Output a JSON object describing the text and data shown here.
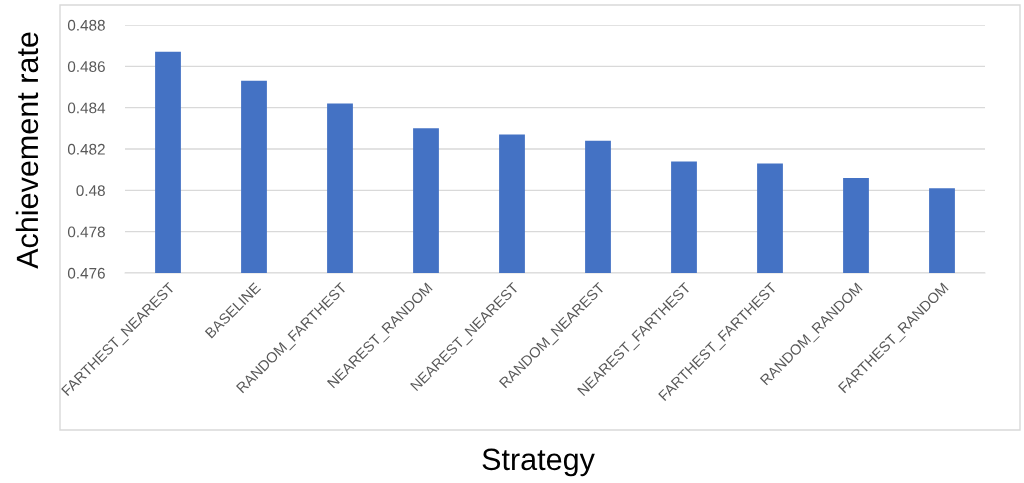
{
  "chart_data": {
    "type": "bar",
    "xlabel": "Strategy",
    "ylabel": "Achievement rate",
    "categories": [
      "FARTHEST_NEAREST",
      "BASELINE",
      "RANDOM_FARTHEST",
      "NEAREST_RANDOM",
      "NEAREST_NEAREST",
      "RANDOM_NEAREST",
      "NEAREST_FARTHEST",
      "FARTHEST_FARTHEST",
      "RANDOM_RANDOM",
      "FARTHEST_RANDOM"
    ],
    "values": [
      0.4867,
      0.4853,
      0.4842,
      0.483,
      0.4827,
      0.4824,
      0.4814,
      0.4813,
      0.4806,
      0.4801
    ],
    "color": "#4472c4",
    "ylim": [
      0.476,
      0.488
    ],
    "yticks": [
      0.476,
      0.478,
      0.48,
      0.482,
      0.484,
      0.486,
      0.488
    ],
    "grid": "y"
  }
}
